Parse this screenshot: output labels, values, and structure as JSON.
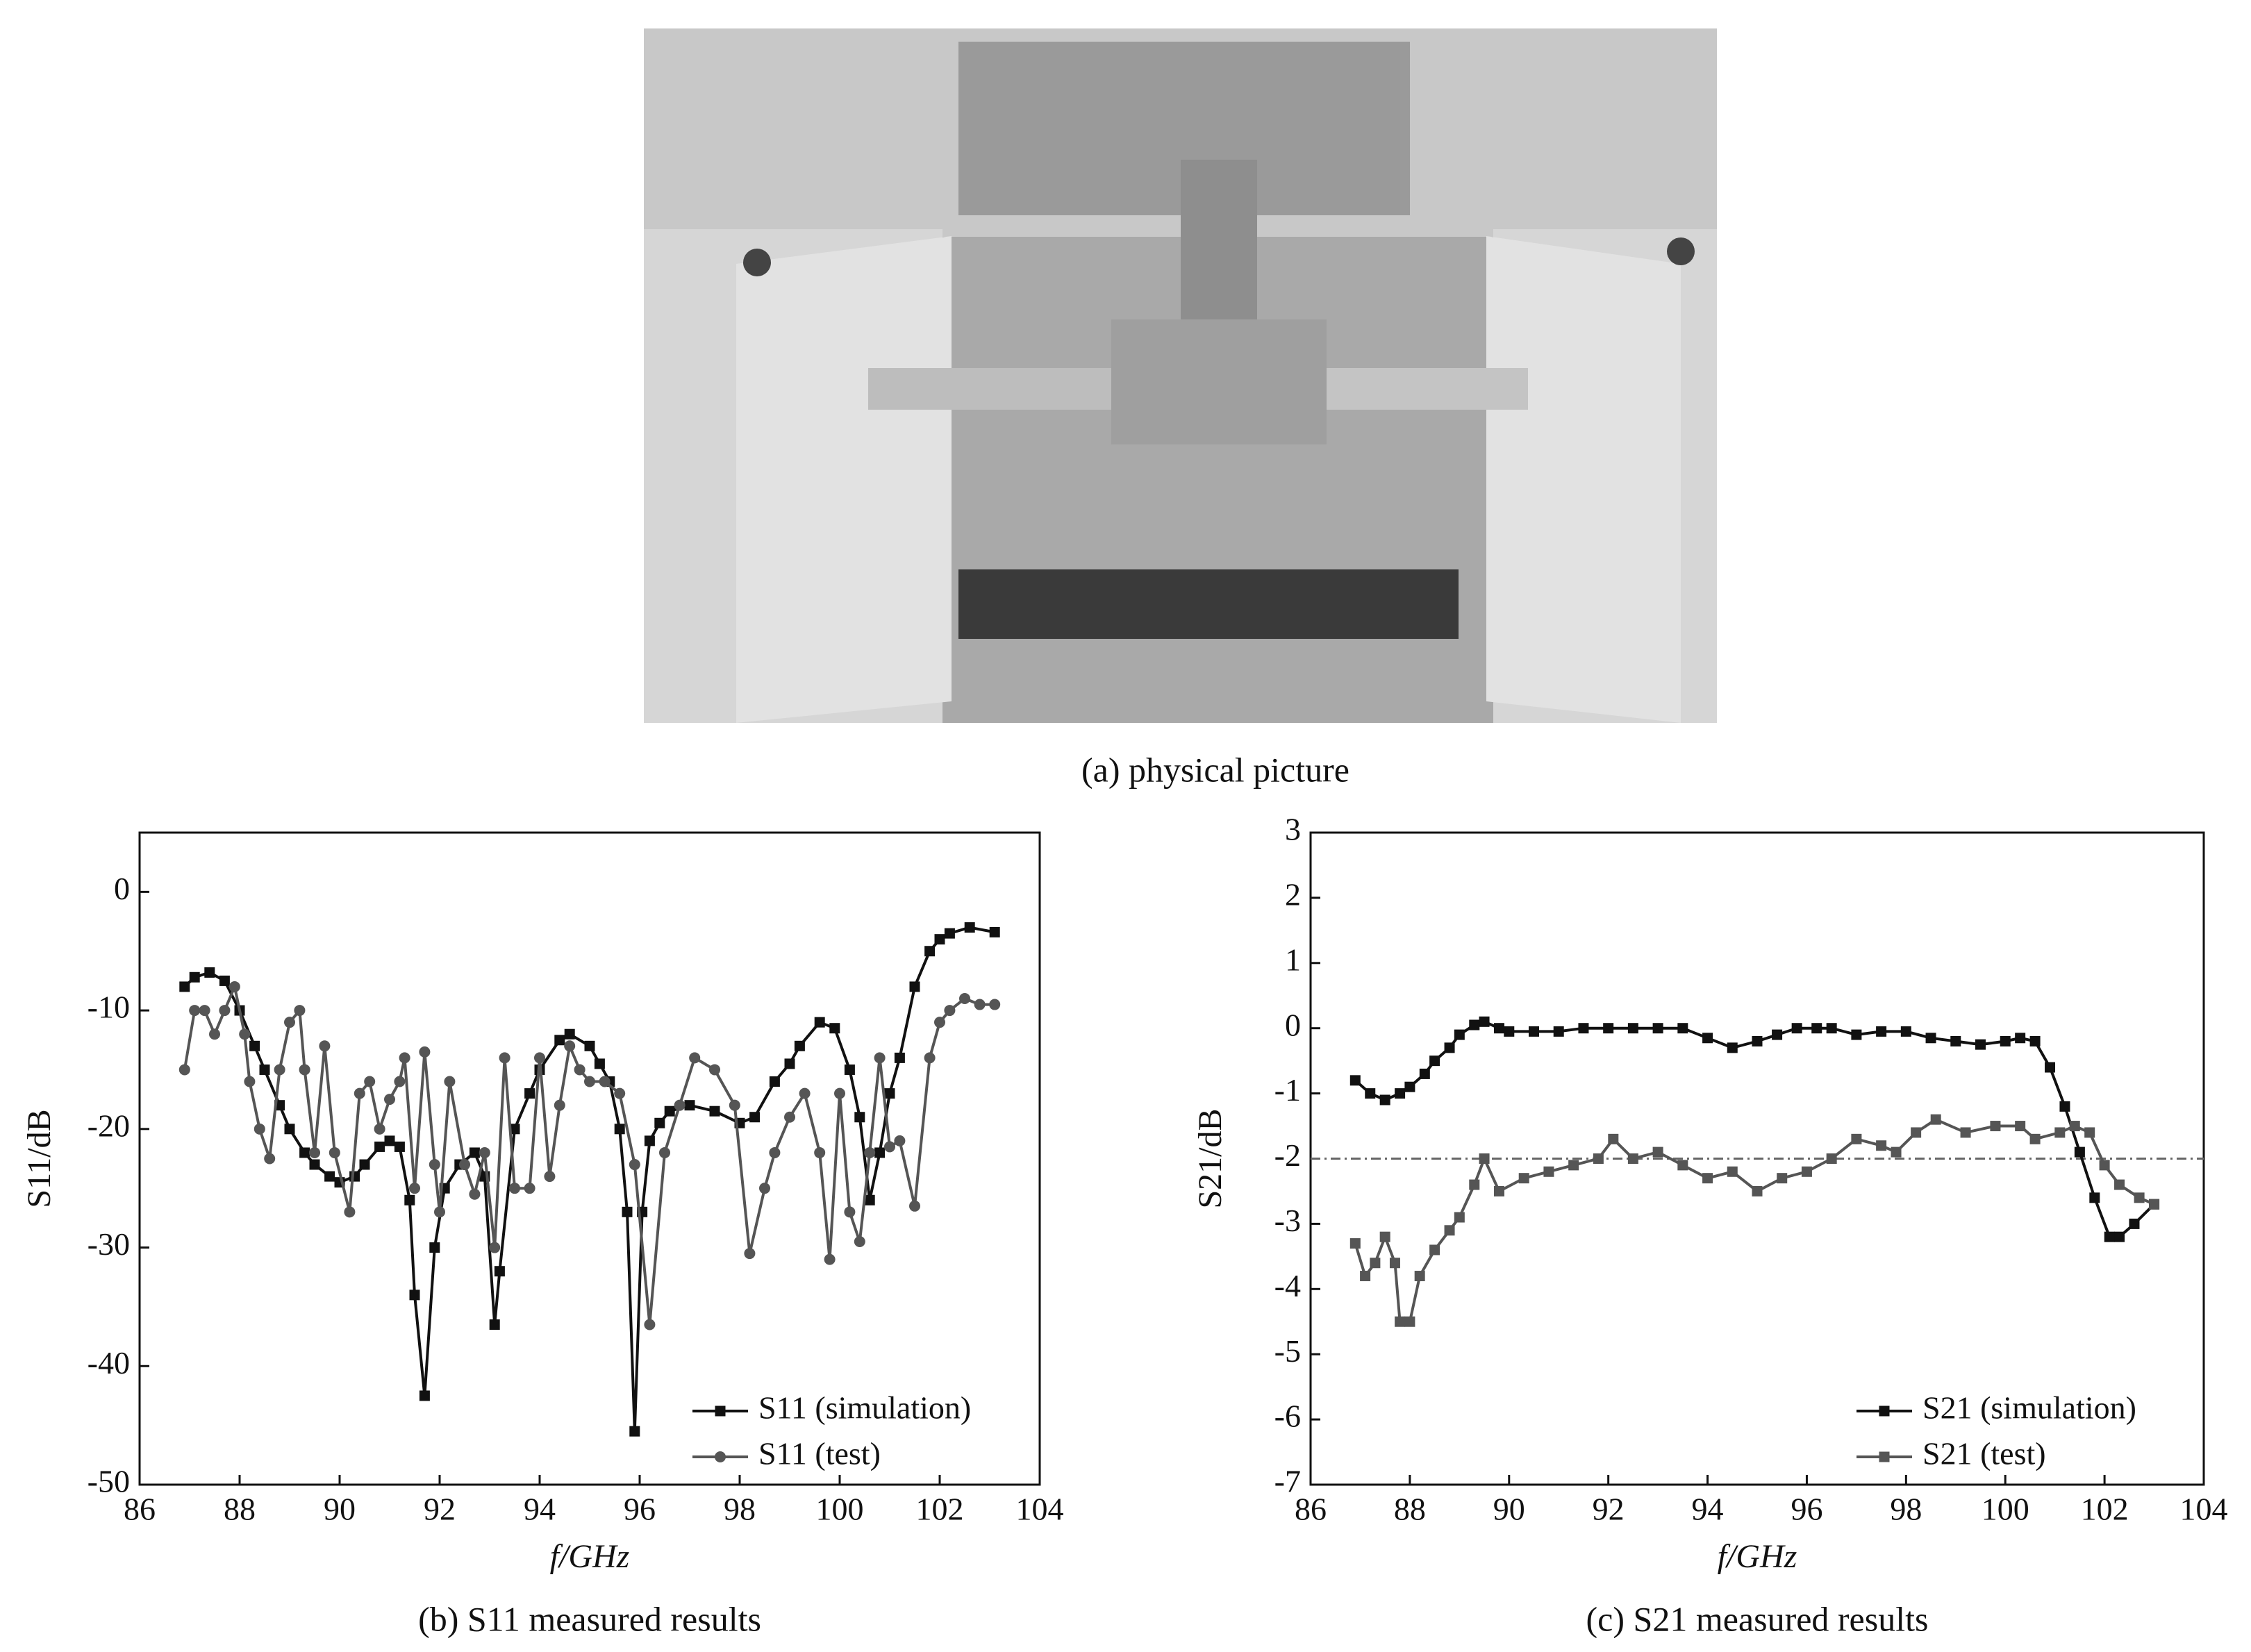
{
  "photo": {
    "caption": "(a) physical picture"
  },
  "chart_data": [
    {
      "type": "line",
      "caption": "(b) S11 measured results",
      "xlabel": "f/GHz",
      "ylabel": "S11/dB",
      "xlim": [
        86,
        104
      ],
      "xticks": [
        86,
        88,
        90,
        92,
        94,
        96,
        98,
        100,
        102,
        104
      ],
      "ylim": [
        -50,
        5
      ],
      "yticks": [
        -50,
        -40,
        -30,
        -20,
        -10,
        0
      ],
      "grid": false,
      "legend": "lower right",
      "series": [
        {
          "name": "S11 (simulation)",
          "color": "#111111",
          "marker": "square",
          "x": [
            86.9,
            87.1,
            87.4,
            87.7,
            88.0,
            88.3,
            88.5,
            88.8,
            89.0,
            89.3,
            89.5,
            89.8,
            90.0,
            90.3,
            90.5,
            90.8,
            91.0,
            91.2,
            91.4,
            91.5,
            91.7,
            91.9,
            92.1,
            92.4,
            92.7,
            92.9,
            93.1,
            93.2,
            93.5,
            93.8,
            94.0,
            94.4,
            94.6,
            95.0,
            95.2,
            95.4,
            95.6,
            95.75,
            95.9,
            96.05,
            96.2,
            96.4,
            96.6,
            97.0,
            97.5,
            98.0,
            98.3,
            98.7,
            99.0,
            99.2,
            99.6,
            99.9,
            100.2,
            100.4,
            100.6,
            100.8,
            101.0,
            101.2,
            101.5,
            101.8,
            102.0,
            102.2,
            102.6,
            103.1
          ],
          "values": [
            -8,
            -7.2,
            -6.8,
            -7.5,
            -10,
            -13,
            -15,
            -18,
            -20,
            -22,
            -23,
            -24,
            -24.5,
            -24,
            -23,
            -21.5,
            -21,
            -21.5,
            -26,
            -34,
            -42.5,
            -30,
            -25,
            -23,
            -22,
            -24,
            -36.5,
            -32,
            -20,
            -17,
            -15,
            -12.5,
            -12,
            -13,
            -14.5,
            -16,
            -20,
            -27,
            -45.5,
            -27,
            -21,
            -19.5,
            -18.5,
            -18,
            -18.5,
            -19.5,
            -19,
            -16,
            -14.5,
            -13,
            -11,
            -11.5,
            -15,
            -19,
            -26,
            -22,
            -17,
            -14,
            -8,
            -5,
            -4,
            -3.5,
            -3,
            -3.4
          ]
        },
        {
          "name": "S11 (test)",
          "color": "#555555",
          "marker": "circle",
          "x": [
            86.9,
            87.1,
            87.3,
            87.5,
            87.7,
            87.9,
            88.1,
            88.2,
            88.4,
            88.6,
            88.8,
            89.0,
            89.2,
            89.3,
            89.5,
            89.7,
            89.9,
            90.2,
            90.4,
            90.6,
            90.8,
            91.0,
            91.2,
            91.3,
            91.5,
            91.7,
            91.9,
            92.0,
            92.2,
            92.5,
            92.7,
            92.9,
            93.1,
            93.3,
            93.5,
            93.8,
            94.0,
            94.2,
            94.4,
            94.6,
            94.8,
            95.0,
            95.3,
            95.6,
            95.9,
            96.2,
            96.5,
            96.8,
            97.1,
            97.5,
            97.9,
            98.2,
            98.5,
            98.7,
            99.0,
            99.3,
            99.6,
            99.8,
            100.0,
            100.2,
            100.4,
            100.6,
            100.8,
            101.0,
            101.2,
            101.5,
            101.8,
            102.0,
            102.2,
            102.5,
            102.8,
            103.1
          ],
          "values": [
            -15,
            -10,
            -10,
            -12,
            -10,
            -8,
            -12,
            -16,
            -20,
            -22.5,
            -15,
            -11,
            -10,
            -15,
            -22,
            -13,
            -22,
            -27,
            -17,
            -16,
            -20,
            -17.5,
            -16,
            -14,
            -25,
            -13.5,
            -23,
            -27,
            -16,
            -23,
            -25.5,
            -22,
            -30,
            -14,
            -25,
            -25,
            -14,
            -24,
            -18,
            -13,
            -15,
            -16,
            -16,
            -17,
            -23,
            -36.5,
            -22,
            -18,
            -14,
            -15,
            -18,
            -30.5,
            -25,
            -22,
            -19,
            -17,
            -22,
            -31,
            -17,
            -27,
            -29.5,
            -22,
            -14,
            -21.5,
            -21,
            -26.5,
            -14,
            -11,
            -10,
            -9,
            -9.5,
            -9.5
          ]
        }
      ]
    },
    {
      "type": "line",
      "caption": "(c) S21 measured results",
      "xlabel": "f/GHz",
      "ylabel": "S21/dB",
      "xlim": [
        86,
        104
      ],
      "xticks": [
        86,
        88,
        90,
        92,
        94,
        96,
        98,
        100,
        102,
        104
      ],
      "ylim": [
        -7,
        3
      ],
      "yticks": [
        -7,
        -6,
        -5,
        -4,
        -3,
        -2,
        -1,
        0,
        1,
        2,
        3
      ],
      "grid": false,
      "legend": "lower right",
      "reference_line": -2,
      "series": [
        {
          "name": "S21 (simulation)",
          "color": "#111111",
          "marker": "square",
          "x": [
            86.9,
            87.2,
            87.5,
            87.8,
            88.0,
            88.3,
            88.5,
            88.8,
            89.0,
            89.3,
            89.5,
            89.8,
            90.0,
            90.5,
            91.0,
            91.5,
            92.0,
            92.5,
            93.0,
            93.5,
            94.0,
            94.5,
            95.0,
            95.4,
            95.8,
            96.2,
            96.5,
            97.0,
            97.5,
            98.0,
            98.5,
            99.0,
            99.5,
            100.0,
            100.3,
            100.6,
            100.9,
            101.2,
            101.5,
            101.8,
            102.1,
            102.3,
            102.6,
            103.0
          ],
          "values": [
            -0.8,
            -1.0,
            -1.1,
            -1.0,
            -0.9,
            -0.7,
            -0.5,
            -0.3,
            -0.1,
            0.05,
            0.1,
            0.0,
            -0.05,
            -0.05,
            -0.05,
            0,
            0,
            0,
            0,
            0,
            -0.15,
            -0.3,
            -0.2,
            -0.1,
            0,
            0,
            0,
            -0.1,
            -0.05,
            -0.05,
            -0.15,
            -0.2,
            -0.25,
            -0.2,
            -0.15,
            -0.2,
            -0.6,
            -1.2,
            -1.9,
            -2.6,
            -3.2,
            -3.2,
            -3.0,
            -2.7
          ]
        },
        {
          "name": "S21 (test)",
          "color": "#555555",
          "marker": "square",
          "x": [
            86.9,
            87.1,
            87.3,
            87.5,
            87.7,
            87.8,
            88.0,
            88.2,
            88.5,
            88.8,
            89.0,
            89.3,
            89.5,
            89.8,
            90.3,
            90.8,
            91.3,
            91.8,
            92.1,
            92.5,
            93.0,
            93.5,
            94.0,
            94.5,
            95.0,
            95.5,
            96.0,
            96.5,
            97.0,
            97.5,
            97.8,
            98.2,
            98.6,
            99.2,
            99.8,
            100.3,
            100.6,
            101.1,
            101.4,
            101.7,
            102.0,
            102.3,
            102.7,
            103.0
          ],
          "values": [
            -3.3,
            -3.8,
            -3.6,
            -3.2,
            -3.6,
            -4.5,
            -4.5,
            -3.8,
            -3.4,
            -3.1,
            -2.9,
            -2.4,
            -2.0,
            -2.5,
            -2.3,
            -2.2,
            -2.1,
            -2.0,
            -1.7,
            -2.0,
            -1.9,
            -2.1,
            -2.3,
            -2.2,
            -2.5,
            -2.3,
            -2.2,
            -2.0,
            -1.7,
            -1.8,
            -1.9,
            -1.6,
            -1.4,
            -1.6,
            -1.5,
            -1.5,
            -1.7,
            -1.6,
            -1.5,
            -1.6,
            -2.1,
            -2.4,
            -2.6,
            -2.7
          ]
        }
      ]
    }
  ]
}
